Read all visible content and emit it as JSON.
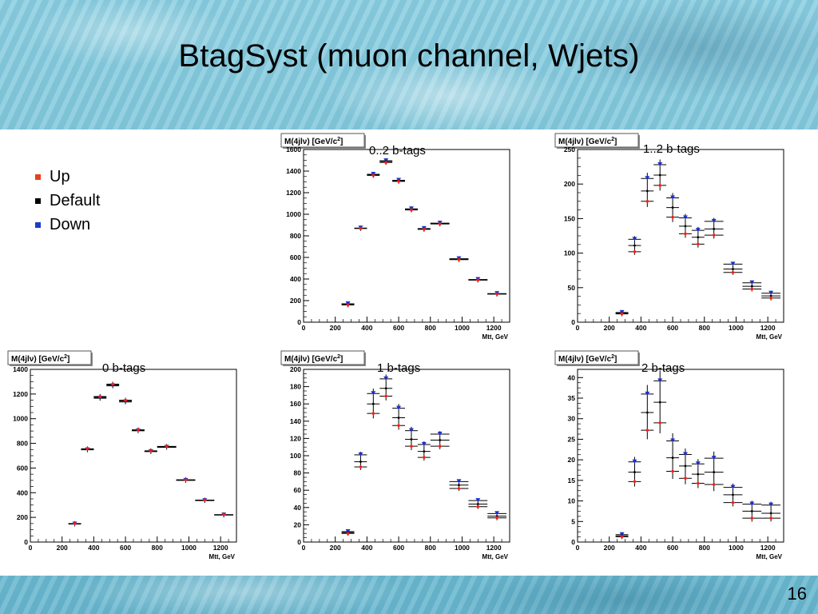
{
  "slide": {
    "title": "BtagSyst (muon channel, Wjets)",
    "page_number": "16"
  },
  "legend": [
    {
      "label": "Up",
      "color": "#e8401c"
    },
    {
      "label": "Default",
      "color": "#000000"
    },
    {
      "label": "Down",
      "color": "#1c3cc8"
    }
  ],
  "colors": {
    "up": "#e8201c",
    "default": "#000000",
    "down": "#1a2fd0"
  },
  "chart_data": [
    {
      "type": "scatter",
      "title": "0..2 b-tags",
      "ylabel_prefix": "M(4jl",
      "ylabel_nu": "ν",
      "ylabel_suffix": ") [GeV/c",
      "ylabel_sup": "2",
      "ylabel_close": "]",
      "xlabel": "Mtt, GeV",
      "xlim": [
        0,
        1300
      ],
      "ylim": [
        0,
        1600
      ],
      "xticks": [
        0,
        200,
        400,
        600,
        800,
        1000,
        1200
      ],
      "yticks": [
        0,
        200,
        400,
        600,
        800,
        1000,
        1200,
        1400,
        1600
      ],
      "x": [
        280,
        360,
        440,
        520,
        600,
        680,
        760,
        860,
        980,
        1100,
        1220
      ],
      "xerr": [
        40,
        40,
        40,
        40,
        40,
        40,
        40,
        60,
        60,
        60,
        60
      ],
      "series": [
        {
          "name": "Up",
          "values": [
            160,
            868,
            1360,
            1480,
            1305,
            1040,
            860,
            910,
            580,
            390,
            260
          ]
        },
        {
          "name": "Default",
          "values": [
            165,
            870,
            1365,
            1490,
            1310,
            1045,
            865,
            915,
            585,
            392,
            262
          ]
        },
        {
          "name": "Down",
          "values": [
            170,
            872,
            1370,
            1495,
            1315,
            1050,
            868,
            918,
            588,
            395,
            265
          ]
        }
      ]
    },
    {
      "type": "scatter",
      "title": "1..2 b-tags",
      "ylabel_prefix": "M(4jl",
      "ylabel_nu": "ν",
      "ylabel_suffix": ") [GeV/c",
      "ylabel_sup": "2",
      "ylabel_close": "]",
      "xlabel": "Mtt, GeV",
      "xlim": [
        0,
        1300
      ],
      "ylim": [
        0,
        250
      ],
      "xticks": [
        0,
        200,
        400,
        600,
        800,
        1000,
        1200
      ],
      "yticks": [
        0,
        50,
        100,
        150,
        200,
        250
      ],
      "x": [
        280,
        360,
        440,
        520,
        600,
        680,
        760,
        860,
        980,
        1100,
        1220
      ],
      "xerr": [
        40,
        40,
        40,
        40,
        40,
        40,
        40,
        60,
        60,
        60,
        60
      ],
      "series": [
        {
          "name": "Up",
          "values": [
            12,
            102,
            175,
            198,
            152,
            128,
            113,
            126,
            72,
            48,
            35
          ]
        },
        {
          "name": "Default",
          "values": [
            13,
            111,
            190,
            213,
            166,
            139,
            123,
            135,
            77,
            52,
            38
          ]
        },
        {
          "name": "Down",
          "values": [
            14,
            120,
            208,
            228,
            180,
            151,
            133,
            146,
            84,
            57,
            42
          ]
        }
      ]
    },
    {
      "type": "scatter",
      "title": "0 b-tags",
      "ylabel_prefix": "M(4jl",
      "ylabel_nu": "ν",
      "ylabel_suffix": ") [GeV/c",
      "ylabel_sup": "2",
      "ylabel_close": "]",
      "xlabel": "Mtt, GeV",
      "xlim": [
        0,
        1300
      ],
      "ylim": [
        0,
        1400
      ],
      "xticks": [
        0,
        200,
        400,
        600,
        800,
        1000,
        1200
      ],
      "yticks": [
        0,
        200,
        400,
        600,
        800,
        1000,
        1200,
        1400
      ],
      "x": [
        280,
        360,
        440,
        520,
        600,
        680,
        760,
        860,
        980,
        1100,
        1220
      ],
      "xerr": [
        40,
        40,
        40,
        40,
        40,
        40,
        40,
        60,
        60,
        60,
        60
      ],
      "series": [
        {
          "name": "Up",
          "values": [
            150,
            756,
            1180,
            1280,
            1150,
            910,
            740,
            775,
            505,
            340,
            222
          ]
        },
        {
          "name": "Default",
          "values": [
            148,
            752,
            1173,
            1273,
            1143,
            906,
            736,
            772,
            503,
            338,
            221
          ]
        },
        {
          "name": "Down",
          "values": [
            146,
            748,
            1166,
            1266,
            1136,
            902,
            733,
            768,
            500,
            336,
            219
          ]
        }
      ]
    },
    {
      "type": "scatter",
      "title": "1 b-tags",
      "ylabel_prefix": "M(4jl",
      "ylabel_nu": "ν",
      "ylabel_suffix": ") [GeV/c",
      "ylabel_sup": "2",
      "ylabel_close": "]",
      "xlabel": "Mtt, GeV",
      "xlim": [
        0,
        1300
      ],
      "ylim": [
        0,
        200
      ],
      "xticks": [
        0,
        200,
        400,
        600,
        800,
        1000,
        1200
      ],
      "yticks": [
        0,
        20,
        40,
        60,
        80,
        100,
        120,
        140,
        160,
        180,
        200
      ],
      "x": [
        280,
        360,
        440,
        520,
        600,
        680,
        760,
        860,
        980,
        1100,
        1220
      ],
      "xerr": [
        40,
        40,
        40,
        40,
        40,
        40,
        40,
        60,
        60,
        60,
        60
      ],
      "series": [
        {
          "name": "Up",
          "values": [
            10,
            87,
            149,
            169,
            135,
            111,
            98,
            111,
            62,
            41,
            28
          ]
        },
        {
          "name": "Default",
          "values": [
            11,
            93,
            160,
            178,
            144,
            119,
            105,
            118,
            66,
            44,
            30
          ]
        },
        {
          "name": "Down",
          "values": [
            12,
            101,
            172,
            189,
            155,
            129,
            113,
            125,
            70,
            48,
            33
          ]
        }
      ]
    },
    {
      "type": "scatter",
      "title": "2 b-tags",
      "ylabel_prefix": "M(4jl",
      "ylabel_nu": "ν",
      "ylabel_suffix": ") [GeV/c",
      "ylabel_sup": "2",
      "ylabel_close": "]",
      "xlabel": "Mtt, GeV",
      "xlim": [
        0,
        1300
      ],
      "ylim": [
        0,
        42
      ],
      "xticks": [
        0,
        200,
        400,
        600,
        800,
        1000,
        1200
      ],
      "yticks": [
        0,
        5,
        10,
        15,
        20,
        25,
        30,
        35,
        40
      ],
      "x": [
        280,
        360,
        440,
        520,
        600,
        680,
        760,
        860,
        980,
        1100,
        1220
      ],
      "xerr": [
        40,
        40,
        40,
        40,
        40,
        40,
        40,
        60,
        60,
        60,
        60
      ],
      "series": [
        {
          "name": "Up",
          "values": [
            1.3,
            14.7,
            27.2,
            29.0,
            17.2,
            15.5,
            14.3,
            14.0,
            9.6,
            5.8,
            5.8
          ]
        },
        {
          "name": "Default",
          "values": [
            1.5,
            17.0,
            31.5,
            34.0,
            20.5,
            18.5,
            16.5,
            17.0,
            11.5,
            7.5,
            7.0
          ]
        },
        {
          "name": "Down",
          "values": [
            1.8,
            19.5,
            36.0,
            39.2,
            24.6,
            21.3,
            19.0,
            20.4,
            13.3,
            9.2,
            9.0
          ]
        }
      ]
    }
  ]
}
